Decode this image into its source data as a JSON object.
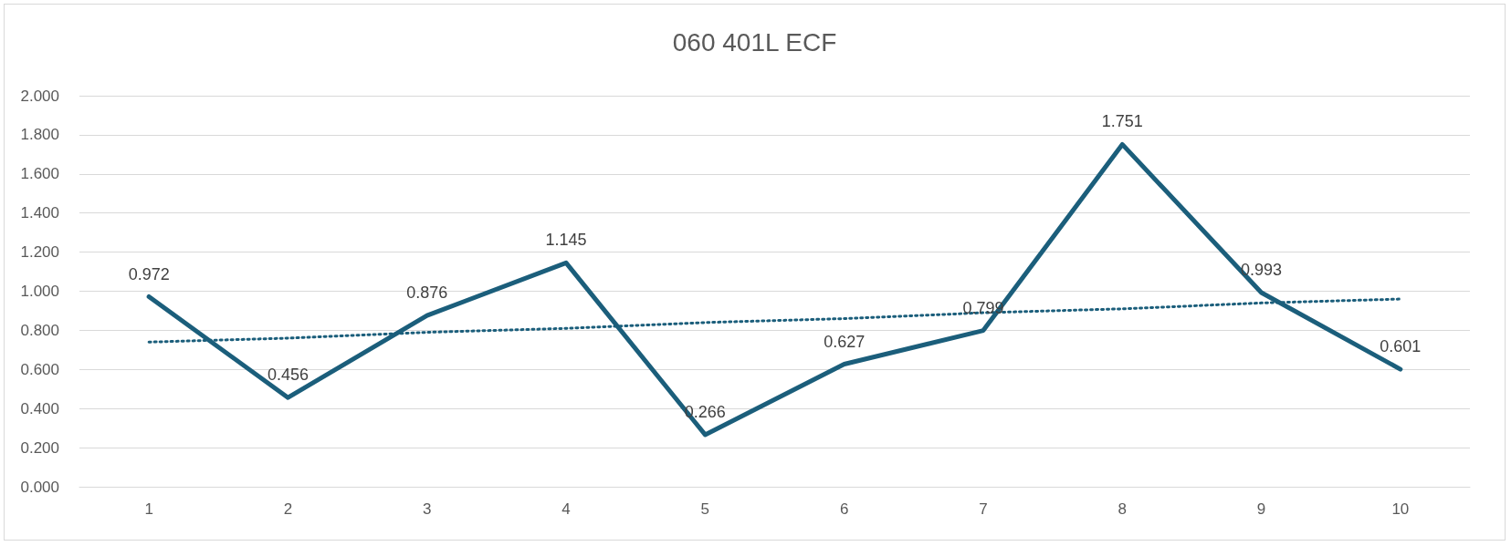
{
  "chart_data": {
    "type": "line",
    "title": "060 401L ECF",
    "categories": [
      "1",
      "2",
      "3",
      "4",
      "5",
      "6",
      "7",
      "8",
      "9",
      "10"
    ],
    "series": [
      {
        "color": "#1b5e7b",
        "line_style": "solid",
        "values": [
          0.972,
          0.456,
          0.876,
          1.145,
          0.266,
          0.627,
          0.799,
          1.751,
          0.993,
          0.601
        ],
        "value_labels": [
          "0.972",
          "0.456",
          "0.876",
          "1.145",
          "0.266",
          "0.627",
          "0.799",
          "1.751",
          "0.993",
          "0.601"
        ]
      },
      {
        "color": "#1b5e7b",
        "line_style": "dotted",
        "values": [
          0.74,
          0.76,
          0.79,
          0.81,
          0.84,
          0.86,
          0.89,
          0.91,
          0.94,
          0.96
        ]
      }
    ],
    "ylim": [
      0,
      2
    ],
    "yticks": [
      {
        "value": 0,
        "label": "0.000"
      },
      {
        "value": 0.2,
        "label": "0.200"
      },
      {
        "value": 0.4,
        "label": "0.400"
      },
      {
        "value": 0.6,
        "label": "0.600"
      },
      {
        "value": 0.8,
        "label": "0.800"
      },
      {
        "value": 1,
        "label": "1.000"
      },
      {
        "value": 1.2,
        "label": "1.200"
      },
      {
        "value": 1.4,
        "label": "1.400"
      },
      {
        "value": 1.6,
        "label": "1.600"
      },
      {
        "value": 1.8,
        "label": "1.800"
      },
      {
        "value": 2,
        "label": "2.000"
      }
    ],
    "grid": "y",
    "marker": "none"
  }
}
